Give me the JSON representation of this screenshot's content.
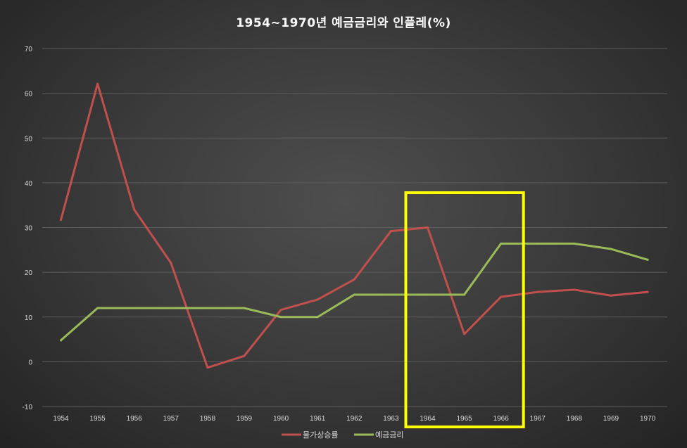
{
  "chart_data": {
    "type": "line",
    "title": "1954~1970년 예금금리와 인플레(%)",
    "xlabel": "",
    "ylabel": "",
    "x": [
      "1954",
      "1955",
      "1956",
      "1957",
      "1958",
      "1959",
      "1960",
      "1961",
      "1962",
      "1963",
      "1964",
      "1965",
      "1966",
      "1967",
      "1968",
      "1969",
      "1970"
    ],
    "ylim": [
      -10,
      70
    ],
    "yticks": [
      -10,
      0,
      10,
      20,
      30,
      40,
      50,
      60,
      70
    ],
    "grid": true,
    "legend_position": "bottom",
    "series": [
      {
        "name": "물가상승률",
        "color": "#c0504d",
        "values": [
          31.7,
          62.1,
          34.0,
          22.1,
          -1.3,
          1.3,
          11.6,
          13.9,
          18.4,
          29.2,
          30.0,
          6.2,
          14.5,
          15.6,
          16.1,
          14.8,
          15.6
        ]
      },
      {
        "name": "예금금리",
        "color": "#9bbb59",
        "values": [
          4.8,
          12.0,
          12.0,
          12.0,
          12.0,
          12.0,
          10.0,
          10.0,
          15.0,
          15.0,
          15.0,
          15.0,
          26.4,
          26.4,
          26.4,
          25.2,
          22.8
        ]
      }
    ],
    "annotations": [
      {
        "type": "highlight-box",
        "color": "#ffff00",
        "x_from": "1964",
        "x_to": "1966"
      }
    ]
  }
}
